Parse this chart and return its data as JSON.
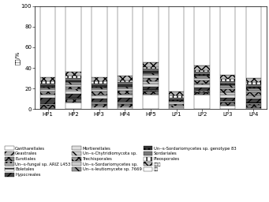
{
  "categories": [
    "HP1",
    "HP2",
    "HP3",
    "HP4",
    "HP5",
    "LP1",
    "LP2",
    "LP3",
    "LP4"
  ],
  "ylabel": "丰度/%",
  "ylim": [
    0,
    100
  ],
  "yticks": [
    0,
    20,
    40,
    60,
    80,
    100
  ],
  "series": [
    {
      "name": "Cantharellales",
      "fc": "#ffffff",
      "hatch": "",
      "ec": "#000000",
      "values": [
        0,
        6,
        2,
        2,
        14,
        0,
        14,
        3,
        1
      ]
    },
    {
      "name": "Geastrales",
      "fc": "#bbbbbb",
      "hatch": "///",
      "ec": "#000000",
      "values": [
        1,
        1,
        1,
        1,
        1,
        0,
        1,
        1,
        1
      ]
    },
    {
      "name": "Eurotiales",
      "fc": "#888888",
      "hatch": "xxx",
      "ec": "#000000",
      "values": [
        2,
        2,
        2,
        2,
        2,
        0,
        1,
        2,
        2
      ]
    },
    {
      "name": "Un--s-fungal sp. ARIZ L453",
      "fc": "#aaaaaa",
      "hatch": "...",
      "ec": "#000000",
      "values": [
        1,
        1,
        1,
        1,
        1,
        0,
        1,
        1,
        1
      ]
    },
    {
      "name": "Boletales",
      "fc": "#ffffff",
      "hatch": "---",
      "ec": "#000000",
      "values": [
        1,
        1,
        1,
        1,
        1,
        0,
        1,
        1,
        1
      ]
    },
    {
      "name": "Hypocreales",
      "fc": "#444444",
      "hatch": "///",
      "ec": "#000000",
      "values": [
        6,
        4,
        3,
        4,
        3,
        0,
        3,
        3,
        4
      ]
    },
    {
      "name": "Mortierellales",
      "fc": "#dddddd",
      "hatch": "ZZZ",
      "ec": "#000000",
      "values": [
        3,
        3,
        3,
        3,
        3,
        2,
        3,
        3,
        2
      ]
    },
    {
      "name": "Un--s-Chytridiomycota sp.",
      "fc": "#cccccc",
      "hatch": "\\\\",
      "ec": "#000000",
      "values": [
        1,
        1,
        1,
        1,
        2,
        1,
        1,
        2,
        1
      ]
    },
    {
      "name": "Trechisporales",
      "fc": "#999999",
      "hatch": "xxx",
      "ec": "#000000",
      "values": [
        2,
        3,
        3,
        3,
        3,
        2,
        3,
        3,
        3
      ]
    },
    {
      "name": "Un--s-Sordariomycetes sp.",
      "fc": "#cccccc",
      "hatch": "",
      "ec": "#000000",
      "values": [
        2,
        2,
        2,
        2,
        3,
        2,
        2,
        2,
        2
      ]
    },
    {
      "name": "Un--s-leutiomycete sp. 7669",
      "fc": "#999999",
      "hatch": "\\\\",
      "ec": "#000000",
      "values": [
        2,
        2,
        2,
        2,
        2,
        1,
        2,
        2,
        2
      ]
    },
    {
      "name": "Un--s-Sordariomycetes sp. genotype 83",
      "fc": "#333333",
      "hatch": "...",
      "ec": "#000000",
      "values": [
        2,
        2,
        2,
        2,
        2,
        1,
        2,
        2,
        2
      ]
    },
    {
      "name": "Sordariales",
      "fc": "#777777",
      "hatch": "",
      "ec": "#000000",
      "values": [
        2,
        2,
        2,
        2,
        2,
        2,
        2,
        2,
        2
      ]
    },
    {
      "name": "Pleosporales",
      "fc": "#ffffff",
      "hatch": "|||",
      "ec": "#000000",
      "values": [
        2,
        2,
        2,
        2,
        2,
        2,
        2,
        2,
        2
      ]
    },
    {
      "name": "未分类",
      "fc": "#bbbbbb",
      "hatch": "xxx",
      "ec": "#000000",
      "values": [
        4,
        4,
        4,
        4,
        4,
        4,
        4,
        4,
        4
      ]
    },
    {
      "name": "其他",
      "fc": "#ffffff",
      "hatch": "",
      "ec": "#000000",
      "values": [
        69,
        64,
        69,
        69,
        55,
        83,
        59,
        69,
        70
      ]
    }
  ],
  "legend_ncol": 3,
  "legend_fontsize": 3.8
}
